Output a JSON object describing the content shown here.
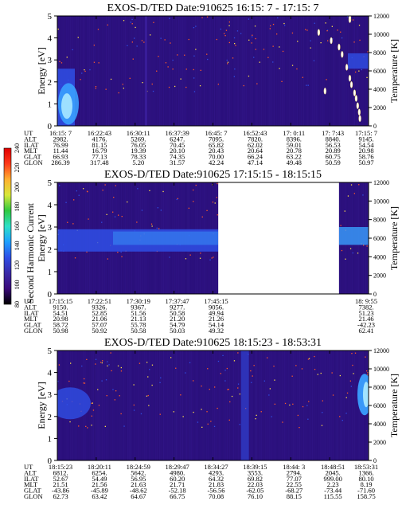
{
  "colors": {
    "background_low": "#2a0f7a",
    "background_mid": "#3a1e9a",
    "band": "#2f4fe6",
    "hot": "#a8e8ff",
    "cyan": "#3aa0ff",
    "speck_red": "#ff5a2a",
    "speck_yellow": "#ffe04a",
    "white": "#ffffff"
  },
  "colorbar": {
    "label": "Second Harmonic Current",
    "ticks": [
      "80",
      "100",
      "120",
      "140",
      "160",
      "180",
      "200",
      "220",
      "240"
    ],
    "stops": [
      "#000000",
      "#3a0a7a",
      "#3a2aa8",
      "#2f4fe6",
      "#1ea0ff",
      "#2ee0c8",
      "#30c840",
      "#d8e83a",
      "#ffb030",
      "#ff3a1a",
      "#e00000"
    ]
  },
  "chart_data": [
    {
      "type": "heatmap",
      "title": "EXOS-D/TED   Date:910625  16:15: 7 - 17:15: 7",
      "ylabel": "Energy [eV]",
      "y2label": "Temperature [K]",
      "ylim": [
        0,
        5
      ],
      "y2lim": [
        0,
        12000
      ],
      "yticks": [
        "0",
        "1",
        "2",
        "3",
        "4",
        "5"
      ],
      "y2ticks": [
        "0",
        "2000",
        "4000",
        "6000",
        "8000",
        "10000",
        "12000"
      ],
      "data_gap": null,
      "rows": [
        {
          "label": "UT",
          "values": [
            "16:15: 7",
            "16:22:43",
            "16:30:11",
            "16:37:39",
            "16:45: 7",
            "16:52:43",
            "17: 0:11",
            "17: 7:43",
            "17:15: 7"
          ]
        },
        {
          "label": "ALT",
          "values": [
            "2982.",
            "4176.",
            "5269.",
            "6247.",
            "7095.",
            "7820.",
            "8396.",
            "8840.",
            "9145."
          ]
        },
        {
          "label": "ILAT",
          "values": [
            "76.99",
            "81.15",
            "76.05",
            "70.45",
            "65.82",
            "62.02",
            "59.01",
            "56.53",
            "54.54"
          ]
        },
        {
          "label": "MLT",
          "values": [
            "11.44",
            "16.79",
            "19.39",
            "20.10",
            "20.43",
            "20.64",
            "20.78",
            "20.89",
            "20.98"
          ]
        },
        {
          "label": "GLAT",
          "values": [
            "66.93",
            "77.13",
            "78.33",
            "74.35",
            "70.00",
            "66.24",
            "63.22",
            "60.75",
            "58.76"
          ]
        },
        {
          "label": "GLON",
          "values": [
            "286.39",
            "317.48",
            "5.20",
            "31.57",
            "42.24",
            "47.14",
            "49.48",
            "50.59",
            "50.97"
          ]
        }
      ]
    },
    {
      "type": "heatmap",
      "title": "EXOS-D/TED   Date:910625  17:15:15 - 18:15:15",
      "ylabel": "Energy [eV]",
      "y2label": "Temperature [K]",
      "ylim": [
        0,
        5
      ],
      "y2lim": [
        0,
        12000
      ],
      "yticks": [
        "0",
        "1",
        "2",
        "3",
        "4",
        "5"
      ],
      "y2ticks": [
        "0",
        "2000",
        "4000",
        "6000",
        "8000",
        "10000",
        "12000"
      ],
      "data_gap": "17:45:15 - 18:09:55",
      "rows": [
        {
          "label": "UT",
          "values": [
            "17:15:15",
            "17:22:51",
            "17:30:19",
            "17:37:47",
            "17:45:15",
            "",
            "",
            "",
            "18: 9:55"
          ]
        },
        {
          "label": "ALT",
          "values": [
            "9150.",
            "9326.",
            "9367.",
            "9277.",
            "9056.",
            "",
            "",
            "",
            "7382."
          ]
        },
        {
          "label": "ILAT",
          "values": [
            "54.51",
            "52.85",
            "51.56",
            "50.58",
            "49.94",
            "",
            "",
            "",
            "51.23"
          ]
        },
        {
          "label": "MLT",
          "values": [
            "20.98",
            "21.06",
            "21.13",
            "21.20",
            "21.26",
            "",
            "",
            "",
            "21.46"
          ]
        },
        {
          "label": "GLAT",
          "values": [
            "58.72",
            "57.07",
            "55.78",
            "54.79",
            "54.14",
            "",
            "",
            "",
            "-42.23"
          ]
        },
        {
          "label": "GLON",
          "values": [
            "50.98",
            "50.92",
            "50.58",
            "50.03",
            "49.32",
            "",
            "",
            "",
            "62.41"
          ]
        }
      ]
    },
    {
      "type": "heatmap",
      "title": "EXOS-D/TED   Date:910625  18:15:23 - 18:53:31",
      "ylabel": "Energy [eV]",
      "y2label": "Temperature [K]",
      "ylim": [
        0,
        5
      ],
      "y2lim": [
        0,
        12000
      ],
      "yticks": [
        "0",
        "1",
        "2",
        "3",
        "4",
        "5"
      ],
      "y2ticks": [
        "0",
        "2000",
        "4000",
        "6000",
        "8000",
        "10000",
        "12000"
      ],
      "data_gap": null,
      "rows": [
        {
          "label": "UT",
          "values": [
            "18:15:23",
            "18:20:11",
            "18:24:59",
            "18:29:47",
            "18:34:27",
            "18:39:15",
            "18:44: 3",
            "18:48:51",
            "18:53:31"
          ]
        },
        {
          "label": "ALT",
          "values": [
            "6812.",
            "6254.",
            "5642.",
            "4980.",
            "4293.",
            "3553.",
            "2794.",
            "2045.",
            "1366."
          ]
        },
        {
          "label": "ILAT",
          "values": [
            "52.67",
            "54.49",
            "56.95",
            "60.20",
            "64.32",
            "69.82",
            "77.07",
            "999.00",
            "80.10"
          ]
        },
        {
          "label": "MLT",
          "values": [
            "21.51",
            "21.56",
            "21.63",
            "21.71",
            "21.83",
            "22.03",
            "22.55",
            "2.23",
            "8.19"
          ]
        },
        {
          "label": "GLAT",
          "values": [
            "-43.86",
            "-45.89",
            "-48.62",
            "-52.18",
            "-56.56",
            "-62.05",
            "-68.27",
            "-73.44",
            "-71.60"
          ]
        },
        {
          "label": "GLON",
          "values": [
            "62.73",
            "63.42",
            "64.67",
            "66.75",
            "70.08",
            "76.10",
            "88.15",
            "115.55",
            "158.75"
          ]
        }
      ]
    }
  ]
}
